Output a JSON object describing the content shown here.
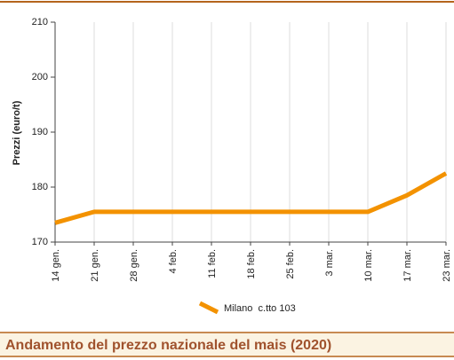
{
  "chart_data": {
    "type": "line",
    "title": "Andamento del prezzo nazionale del mais (2020)",
    "y_label": "Prezzi (euro/t)",
    "categories": [
      "14 gen.",
      "21 gen.",
      "28 gen.",
      "4 feb.",
      "11 feb.",
      "18 feb.",
      "25 feb.",
      "3 mar.",
      "10 mar.",
      "17 mar.",
      "23 mar."
    ],
    "series": [
      {
        "name": "Milano  c.tto 103",
        "color": "#f39200",
        "values": [
          173.5,
          175.5,
          175.5,
          175.5,
          175.5,
          175.5,
          175.5,
          175.5,
          175.5,
          178.5,
          182.5
        ]
      }
    ],
    "ylim": [
      170,
      210
    ],
    "yticks": [
      170,
      180,
      190,
      200,
      210
    ],
    "grid": "x"
  }
}
